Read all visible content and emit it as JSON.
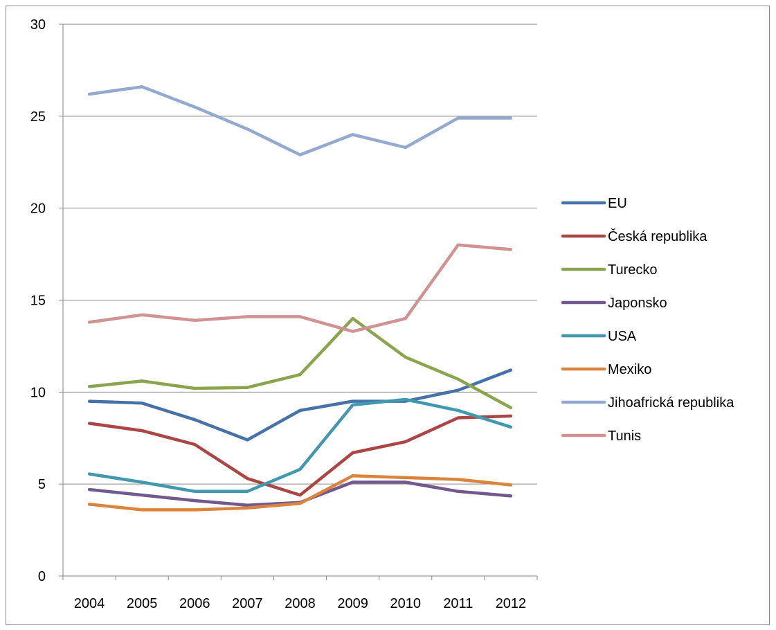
{
  "chart_data": {
    "type": "line",
    "title": "",
    "xlabel": "",
    "ylabel": "",
    "x": [
      "2004",
      "2005",
      "2006",
      "2007",
      "2008",
      "2009",
      "2010",
      "2011",
      "2012"
    ],
    "ylim": [
      0,
      30
    ],
    "yticks": [
      0,
      5,
      10,
      15,
      20,
      25,
      30
    ],
    "grid": "horizontal",
    "legend_position": "right",
    "series": [
      {
        "name": "EU",
        "color": "#4572A7",
        "values": [
          9.5,
          9.4,
          8.5,
          7.4,
          9.0,
          9.5,
          9.5,
          10.1,
          11.2
        ]
      },
      {
        "name": "Česká republika",
        "color": "#AA4643",
        "values": [
          8.3,
          7.9,
          7.15,
          5.3,
          4.4,
          6.7,
          7.3,
          8.6,
          8.7
        ]
      },
      {
        "name": "Turecko",
        "color": "#89A54E",
        "values": [
          10.3,
          10.6,
          10.2,
          10.25,
          10.95,
          14.0,
          11.9,
          10.7,
          9.15
        ]
      },
      {
        "name": "Japonsko",
        "color": "#71588F",
        "values": [
          4.7,
          4.4,
          4.1,
          3.85,
          4.0,
          5.1,
          5.1,
          4.6,
          4.35
        ]
      },
      {
        "name": "USA",
        "color": "#4198AF",
        "values": [
          5.55,
          5.1,
          4.6,
          4.6,
          5.8,
          9.3,
          9.6,
          9.0,
          8.1
        ]
      },
      {
        "name": "Mexiko",
        "color": "#DB843D",
        "values": [
          3.9,
          3.6,
          3.6,
          3.7,
          3.95,
          5.45,
          5.35,
          5.25,
          4.95
        ]
      },
      {
        "name": "Jihoafrická republika",
        "color": "#93A9CF",
        "values": [
          26.2,
          26.6,
          25.5,
          24.3,
          22.9,
          24.0,
          23.3,
          24.9,
          24.9
        ]
      },
      {
        "name": "Tunis",
        "color": "#D19392",
        "values": [
          13.8,
          14.2,
          13.9,
          14.1,
          14.1,
          13.3,
          14.0,
          18.0,
          17.75
        ]
      }
    ]
  }
}
